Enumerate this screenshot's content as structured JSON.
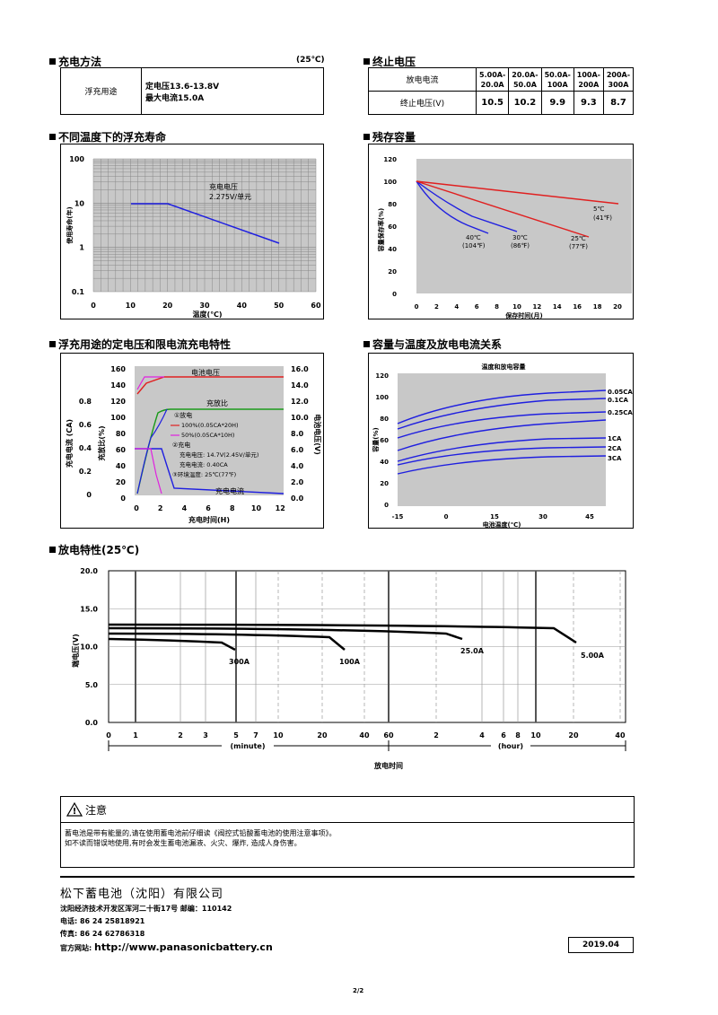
{
  "charging": {
    "title": "充电方法",
    "temp": "(25℃)",
    "usage": "浮充用途",
    "line1": "定电压13.6-13.8V",
    "line2": "最大电流15.0A"
  },
  "endvoltage": {
    "title": "终止电压",
    "row1_label": "放电电流",
    "row2_label": "终止电压(V)",
    "currents": [
      "5.00A-\n20.0A",
      "20.0A-\n50.0A",
      "50.0A-\n100A",
      "100A-\n200A",
      "200A-\n300A"
    ],
    "voltages": [
      "10.5",
      "10.2",
      "9.9",
      "9.3",
      "8.7"
    ]
  },
  "floatlife": {
    "title": "不同温度下的浮充寿命",
    "ylabel": "使用寿命(年)",
    "xlabel": "温度(℃)",
    "yticks": [
      "100",
      "10",
      "1",
      "0.1"
    ],
    "xticks": [
      "0",
      "10",
      "20",
      "30",
      "40",
      "50",
      "60"
    ],
    "ann1": "充电电压",
    "ann2": "2.275V/单元"
  },
  "residual": {
    "title": "残存容量",
    "ylabel": "容量保存率(%)",
    "xlabel": "保存时间(月)",
    "yticks": [
      "120",
      "100",
      "80",
      "60",
      "40",
      "20",
      "0"
    ],
    "xticks": [
      "0",
      "2",
      "4",
      "6",
      "8",
      "10",
      "12",
      "14",
      "16",
      "18",
      "20"
    ],
    "labels": [
      {
        "c": "40℃",
        "f": "(104℉)"
      },
      {
        "c": "30℃",
        "f": "(86℉)"
      },
      {
        "c": "25℃",
        "f": "(77℉)"
      },
      {
        "c": "5℃",
        "f": "(41℉)"
      }
    ]
  },
  "chargechar": {
    "title": "浮充用途的定电压和限电流充电特性",
    "yl_ticks": [
      "160",
      "140",
      "120",
      "100",
      "80",
      "60",
      "40",
      "20",
      "0"
    ],
    "yc_ticks": [
      "0.8",
      "0.6",
      "0.4",
      "0.2",
      "0"
    ],
    "yr_ticks": [
      "16.0",
      "14.0",
      "12.0",
      "10.0",
      "8.0",
      "6.0",
      "4.0",
      "2.0",
      "0.0"
    ],
    "xticks": [
      "0",
      "2",
      "4",
      "6",
      "8",
      "10",
      "12"
    ],
    "xlabel": "充电时间(H)",
    "ylabel_left1": "充电电流 (CA)",
    "ylabel_left2": "充放比(%)",
    "ylabel_right": "电池电压(V)",
    "label_voltage": "电池电压",
    "label_ratio": "充放比",
    "label_current": "充电电流",
    "note_discharge": "①放电",
    "note_d1": "100%(0.05CA*20H)",
    "note_d2": "50%(0.05CA*10H)",
    "note_charge": "②充电",
    "note_c1": "充电电压: 14.7V(2.45V/单元)",
    "note_c2": "充电电流: 0.40CA",
    "note_env": "③环境温度: 25℃(77℉)"
  },
  "captemp": {
    "title": "容量与温度及放电电流关系",
    "subtitle": "温度和放电容量",
    "ylabel": "容量(%)",
    "xlabel": "电池温度(℃)",
    "yticks": [
      "120",
      "100",
      "80",
      "60",
      "40",
      "20",
      "0"
    ],
    "xticks": [
      "-15",
      "0",
      "15",
      "30",
      "45"
    ],
    "series": [
      "0.05CA",
      "0.1CA",
      "0.25CA",
      "1CA",
      "2CA",
      "3CA"
    ]
  },
  "discharge": {
    "title": "放电特性(25℃)",
    "ylabel": "端电压(V)",
    "yticks": [
      "20.0",
      "15.0",
      "10.0",
      "5.0",
      "0.0"
    ],
    "xticks_min": [
      "0",
      "1",
      "2",
      "3",
      "5",
      "7",
      "10",
      "20",
      "40",
      "60"
    ],
    "xticks_hr": [
      "2",
      "4",
      "6",
      "8",
      "10",
      "20",
      "40"
    ],
    "min_label": "(minute)",
    "hr_label": "(hour)",
    "xlabel": "放电时间",
    "series": [
      "300A",
      "100A",
      "25.0A",
      "5.00A"
    ]
  },
  "caution": {
    "title": "注意",
    "line1": "蓄电池是带有能量的,请在使用蓄电池前仔细读《阀控式铅酸蓄电池的使用注意事项》。",
    "line2": "如不读而错误地使用,有时会发生蓄电池漏液、火灾、爆炸, 造成人身伤害。"
  },
  "company": {
    "name": "松下蓄电池（沈阳）有限公司",
    "address": "沈阳经济技术开发区浑河二十街17号 邮编：110142",
    "tel": "电话: 86 24 25818921",
    "fax": "传真: 86 24 62786318",
    "web_label": "官方网站:",
    "web": "http://www.panasonicbattery.cn",
    "date": "2019.04"
  },
  "page": "2/2",
  "colors": {
    "blue": "#1f1fe0",
    "red": "#e02020",
    "green": "#1a9a1a",
    "magenta": "#e020e0",
    "grey": "#c8c8c8"
  }
}
